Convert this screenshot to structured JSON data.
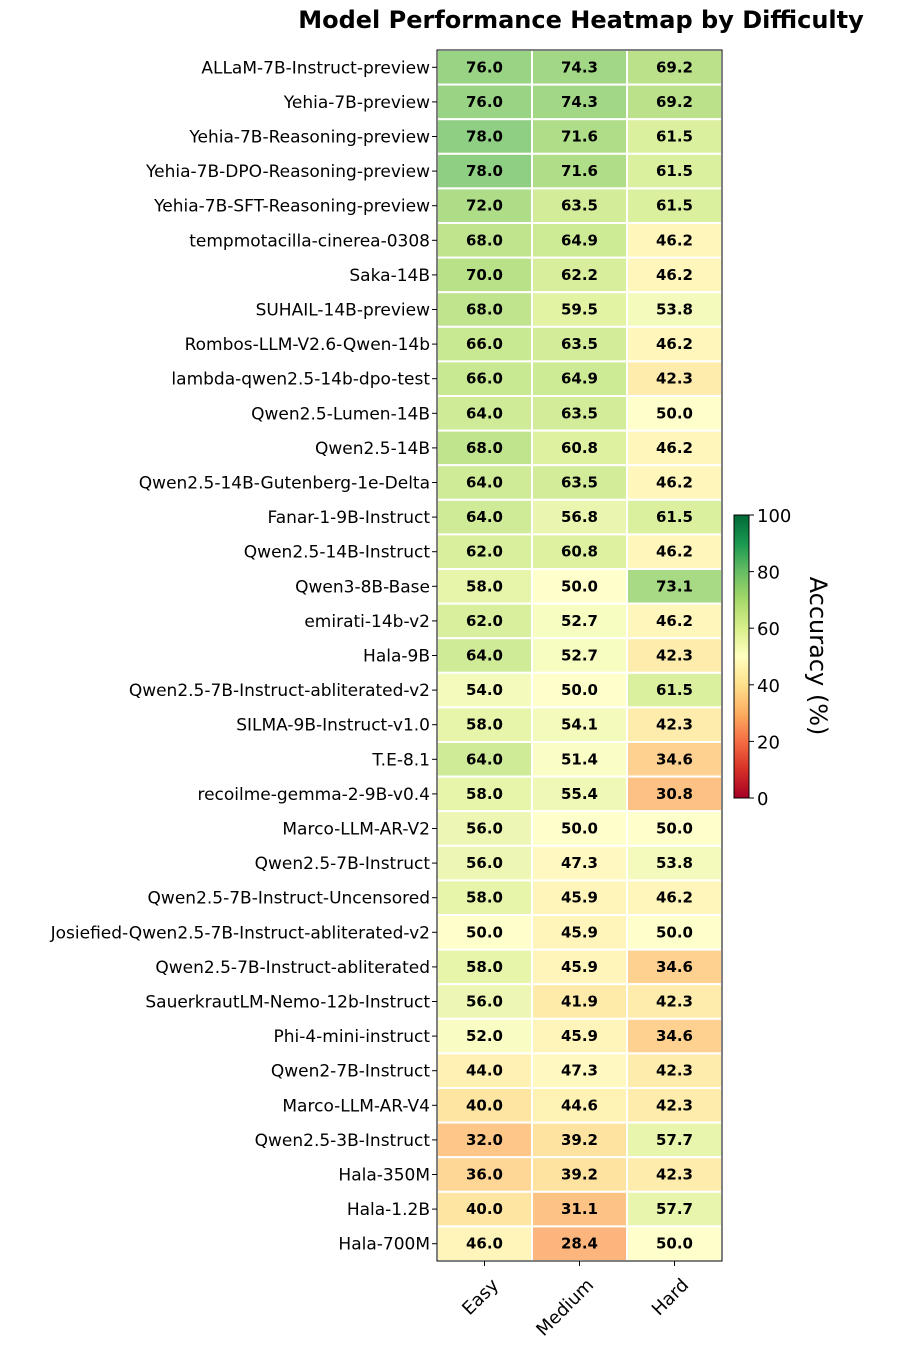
{
  "chart_data": {
    "type": "heatmap",
    "title": "Model Performance Heatmap by Difficulty",
    "columns": [
      "Easy",
      "Medium",
      "Hard"
    ],
    "rows": [
      {
        "model": "ALLaM-7B-Instruct-preview",
        "values": [
          76.0,
          74.3,
          69.2
        ]
      },
      {
        "model": "Yehia-7B-preview",
        "values": [
          76.0,
          74.3,
          69.2
        ]
      },
      {
        "model": "Yehia-7B-Reasoning-preview",
        "values": [
          78.0,
          71.6,
          61.5
        ]
      },
      {
        "model": "Yehia-7B-DPO-Reasoning-preview",
        "values": [
          78.0,
          71.6,
          61.5
        ]
      },
      {
        "model": "Yehia-7B-SFT-Reasoning-preview",
        "values": [
          72.0,
          63.5,
          61.5
        ]
      },
      {
        "model": "tempmotacilla-cinerea-0308",
        "values": [
          68.0,
          64.9,
          46.2
        ]
      },
      {
        "model": "Saka-14B",
        "values": [
          70.0,
          62.2,
          46.2
        ]
      },
      {
        "model": "SUHAIL-14B-preview",
        "values": [
          68.0,
          59.5,
          53.8
        ]
      },
      {
        "model": "Rombos-LLM-V2.6-Qwen-14b",
        "values": [
          66.0,
          63.5,
          46.2
        ]
      },
      {
        "model": "lambda-qwen2.5-14b-dpo-test",
        "values": [
          66.0,
          64.9,
          42.3
        ]
      },
      {
        "model": "Qwen2.5-Lumen-14B",
        "values": [
          64.0,
          63.5,
          50.0
        ]
      },
      {
        "model": "Qwen2.5-14B",
        "values": [
          68.0,
          60.8,
          46.2
        ]
      },
      {
        "model": "Qwen2.5-14B-Gutenberg-1e-Delta",
        "values": [
          64.0,
          63.5,
          46.2
        ]
      },
      {
        "model": "Fanar-1-9B-Instruct",
        "values": [
          64.0,
          56.8,
          61.5
        ]
      },
      {
        "model": "Qwen2.5-14B-Instruct",
        "values": [
          62.0,
          60.8,
          46.2
        ]
      },
      {
        "model": "Qwen3-8B-Base",
        "values": [
          58.0,
          50.0,
          73.1
        ]
      },
      {
        "model": "emirati-14b-v2",
        "values": [
          62.0,
          52.7,
          46.2
        ]
      },
      {
        "model": "Hala-9B",
        "values": [
          64.0,
          52.7,
          42.3
        ]
      },
      {
        "model": "Qwen2.5-7B-Instruct-abliterated-v2",
        "values": [
          54.0,
          50.0,
          61.5
        ]
      },
      {
        "model": "SILMA-9B-Instruct-v1.0",
        "values": [
          58.0,
          54.1,
          42.3
        ]
      },
      {
        "model": "T.E-8.1",
        "values": [
          64.0,
          51.4,
          34.6
        ]
      },
      {
        "model": "recoilme-gemma-2-9B-v0.4",
        "values": [
          58.0,
          55.4,
          30.8
        ]
      },
      {
        "model": "Marco-LLM-AR-V2",
        "values": [
          56.0,
          50.0,
          50.0
        ]
      },
      {
        "model": "Qwen2.5-7B-Instruct",
        "values": [
          56.0,
          47.3,
          53.8
        ]
      },
      {
        "model": "Qwen2.5-7B-Instruct-Uncensored",
        "values": [
          58.0,
          45.9,
          46.2
        ]
      },
      {
        "model": "Josiefied-Qwen2.5-7B-Instruct-abliterated-v2",
        "values": [
          50.0,
          45.9,
          50.0
        ]
      },
      {
        "model": "Qwen2.5-7B-Instruct-abliterated",
        "values": [
          58.0,
          45.9,
          34.6
        ]
      },
      {
        "model": "SauerkrautLM-Nemo-12b-Instruct",
        "values": [
          56.0,
          41.9,
          42.3
        ]
      },
      {
        "model": "Phi-4-mini-instruct",
        "values": [
          52.0,
          45.9,
          34.6
        ]
      },
      {
        "model": "Qwen2-7B-Instruct",
        "values": [
          44.0,
          47.3,
          42.3
        ]
      },
      {
        "model": "Marco-LLM-AR-V4",
        "values": [
          40.0,
          44.6,
          42.3
        ]
      },
      {
        "model": "Qwen2.5-3B-Instruct",
        "values": [
          32.0,
          39.2,
          57.7
        ]
      },
      {
        "model": "Hala-350M",
        "values": [
          36.0,
          39.2,
          42.3
        ]
      },
      {
        "model": "Hala-1.2B",
        "values": [
          40.0,
          31.1,
          57.7
        ]
      },
      {
        "model": "Hala-700M",
        "values": [
          46.0,
          28.4,
          50.0
        ]
      }
    ],
    "colormap": "RdYlGn",
    "value_range": [
      0,
      100
    ],
    "colorbar": {
      "label": "Accuracy (%)",
      "ticks": [
        0,
        20,
        40,
        60,
        80,
        100
      ]
    },
    "value_format": "one decimal",
    "gridlines": "white"
  }
}
